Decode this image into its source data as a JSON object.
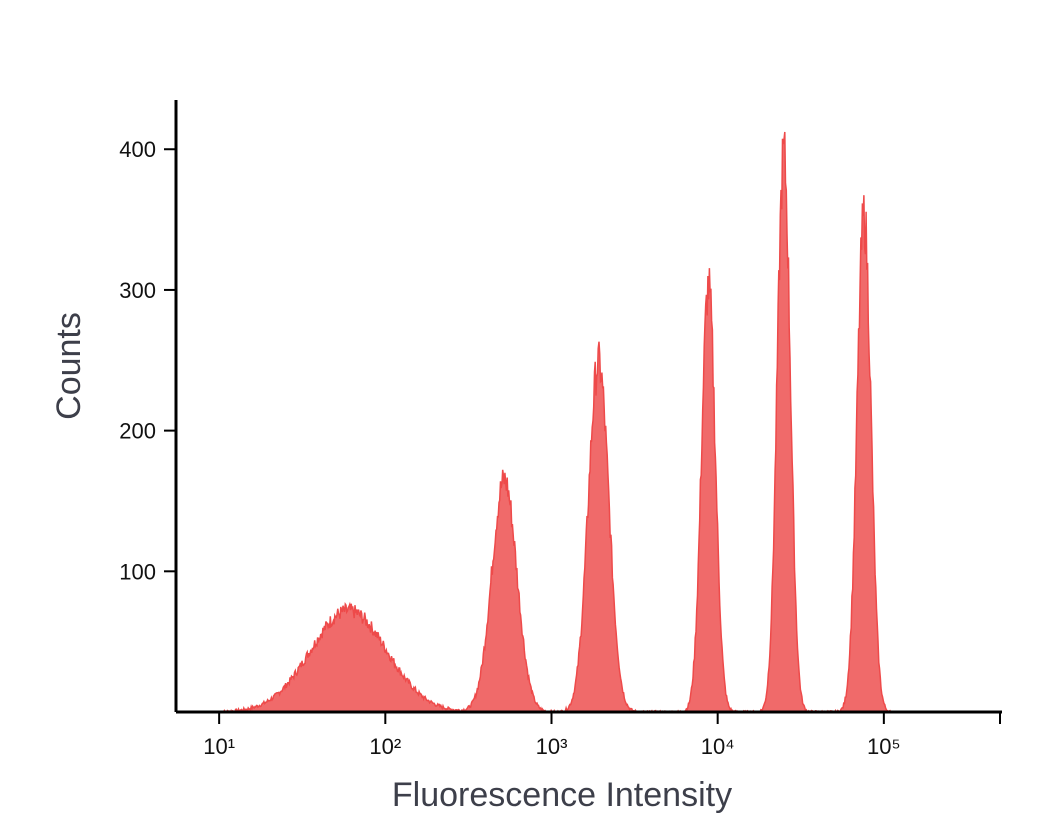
{
  "chart_data": {
    "type": "area",
    "title": "",
    "xlabel": "Fluorescence Intensity",
    "ylabel": "Counts",
    "x_scale": "log",
    "xlim": [
      5.5,
      500000
    ],
    "ylim": [
      0,
      435
    ],
    "x_ticks": [
      {
        "value": 10,
        "label": "10¹"
      },
      {
        "value": 100,
        "label": "10²"
      },
      {
        "value": 1000,
        "label": "10³"
      },
      {
        "value": 10000,
        "label": "10⁴"
      },
      {
        "value": 100000,
        "label": "10⁵"
      }
    ],
    "y_ticks": [
      {
        "value": 100,
        "label": "100"
      },
      {
        "value": 200,
        "label": "200"
      },
      {
        "value": 300,
        "label": "300"
      },
      {
        "value": 400,
        "label": "400"
      }
    ],
    "grid": false,
    "legend": "none",
    "series_color": "#ee4a4a",
    "fill_color": "#f06a6a",
    "peaks": [
      {
        "center": 60,
        "height": 72
      },
      {
        "center": 520,
        "height": 165
      },
      {
        "center": 1920,
        "height": 248
      },
      {
        "center": 8800,
        "height": 302
      },
      {
        "center": 25000,
        "height": 396
      },
      {
        "center": 76000,
        "height": 352
      }
    ]
  }
}
